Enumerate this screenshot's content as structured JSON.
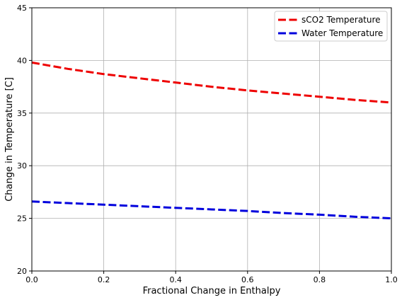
{
  "chart_data": {
    "type": "line",
    "title": "",
    "xlabel": "Fractional Change in Enthalpy",
    "ylabel": "Change in Temperature [C]",
    "xlim": [
      0,
      1
    ],
    "ylim": [
      20,
      45
    ],
    "xticks": [
      "0.0",
      "0.2",
      "0.4",
      "0.6",
      "0.8",
      "1.0"
    ],
    "yticks": [
      "20",
      "25",
      "30",
      "35",
      "40",
      "45"
    ],
    "grid": true,
    "legend_position": "top-right",
    "x": [
      0.0,
      0.1,
      0.2,
      0.3,
      0.4,
      0.5,
      0.6,
      0.7,
      0.8,
      0.9,
      1.0
    ],
    "series": [
      {
        "name": "sCO2 Temperature",
        "color": "#ee0000",
        "style": "dashed",
        "values": [
          39.8,
          39.2,
          38.7,
          38.3,
          37.9,
          37.5,
          37.15,
          36.85,
          36.55,
          36.25,
          36.0
        ]
      },
      {
        "name": "Water Temperature",
        "color": "#0000dd",
        "style": "dashed",
        "values": [
          26.6,
          26.45,
          26.3,
          26.15,
          26.0,
          25.85,
          25.7,
          25.5,
          25.35,
          25.15,
          25.0
        ]
      }
    ]
  }
}
